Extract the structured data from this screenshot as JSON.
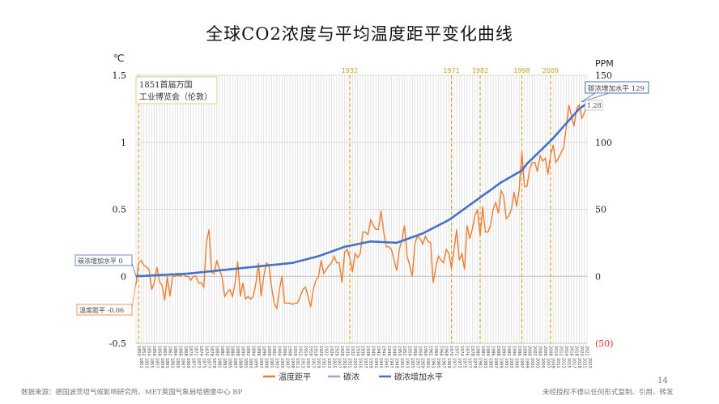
{
  "chart_data": {
    "type": "line",
    "title": "全球CO2浓度与平均温度距平变化曲线",
    "ylabel": "℃",
    "y2label": "PPM",
    "ylim": [
      -0.5,
      1.5
    ],
    "y2lim": [
      -50,
      150
    ],
    "yticks": [
      "1.5",
      "1",
      "0.5",
      "0",
      "-0.5"
    ],
    "y2ticks": [
      "150",
      "100",
      "50",
      "0",
      "(50)"
    ],
    "x_start": 1850,
    "x_end": 2023,
    "grid": true,
    "legend_position": "bottom",
    "series": [
      {
        "name": "温度距平",
        "color": "#ED7D31",
        "x_start": 1850,
        "values": [
          -0.06,
          0.1,
          0.12,
          0.08,
          0.07,
          0.05,
          -0.1,
          -0.05,
          0.07,
          -0.04,
          -0.07,
          -0.18,
          0.0,
          -0.15,
          0.0,
          0.0,
          0.01,
          0.0,
          0.02,
          0.0,
          0.0,
          -0.03,
          0.0,
          0.0,
          -0.05,
          -0.05,
          -0.08,
          0.25,
          0.35,
          0.03,
          0.02,
          0.12,
          0.05,
          0.0,
          -0.15,
          -0.12,
          -0.1,
          -0.15,
          -0.05,
          0.11,
          -0.15,
          -0.05,
          -0.17,
          -0.15,
          -0.17,
          -0.15,
          -0.05,
          0.1,
          -0.15,
          0.0,
          0.1,
          0.08,
          -0.08,
          -0.2,
          -0.24,
          -0.1,
          0.0,
          -0.2,
          -0.2,
          -0.2,
          -0.21,
          -0.2,
          -0.2,
          -0.15,
          -0.1,
          -0.08,
          -0.15,
          -0.23,
          -0.1,
          -0.03,
          0.0,
          0.12,
          0.02,
          0.05,
          0.08,
          0.1,
          0.15,
          0.1,
          0.1,
          -0.05,
          0.18,
          0.2,
          0.14,
          0.03,
          0.17,
          0.14,
          0.17,
          0.33,
          0.33,
          0.31,
          0.42,
          0.38,
          0.35,
          0.35,
          0.49,
          0.33,
          0.22,
          0.22,
          0.2,
          0.12,
          0.04,
          0.2,
          0.27,
          0.38,
          0.15,
          0.08,
          0.0,
          0.25,
          0.3,
          0.28,
          0.24,
          0.3,
          0.26,
          0.25,
          -0.05,
          0.07,
          0.15,
          0.12,
          0.1,
          0.2,
          0.17,
          0.06,
          0.2,
          0.35,
          0.12,
          0.17,
          0.05,
          0.38,
          0.28,
          0.35,
          0.45,
          0.5,
          0.3,
          0.52,
          0.33,
          0.33,
          0.38,
          0.5,
          0.55,
          0.47,
          0.64,
          0.6,
          0.43,
          0.45,
          0.5,
          0.63,
          0.52,
          0.65,
          0.93,
          0.67,
          0.67,
          0.8,
          0.85,
          0.85,
          0.78,
          0.9,
          0.86,
          0.88,
          0.76,
          0.9,
          0.98,
          0.85,
          0.88,
          0.92,
          0.96,
          1.1,
          1.28,
          1.2,
          1.12,
          1.25,
          1.28,
          1.18,
          1.22,
          1.28
        ]
      },
      {
        "name": "碳浓",
        "color": "#8FAADC",
        "values": []
      },
      {
        "name": "碳浓增加水平",
        "color": "#4472C4",
        "anchor_years": [
          1850,
          1860,
          1870,
          1880,
          1890,
          1900,
          1910,
          1920,
          1930,
          1940,
          1950,
          1960,
          1970,
          1980,
          1990,
          1998,
          2000,
          2010,
          2020,
          2023
        ],
        "anchor_values": [
          0,
          1,
          2,
          4,
          6,
          8,
          10,
          15,
          22,
          26,
          25,
          32,
          42,
          56,
          70,
          79,
          84,
          103,
          125,
          129
        ]
      }
    ],
    "event_lines": [
      "1851",
      "1932",
      "1971",
      "1982",
      "1998",
      "2009"
    ],
    "annotations": {
      "expo": "1851首届万国\n工业博览会（伦敦）",
      "expo_line1": "1851首届万国",
      "expo_line2": "工业博览会（伦敦）",
      "co2_start": "碳浓增加水平 0",
      "temp_start": "温度距平 -0.06",
      "co2_end": "碳浓增加水平 129",
      "temp_end": "1.28"
    }
  },
  "footer": {
    "source": "数据来源：德国波茨坦气候影响研究所、MET英国气象局哈德雷中心 BP",
    "page": "14",
    "copyright": "未经授权不得以任何形式复制、引用、转发"
  }
}
